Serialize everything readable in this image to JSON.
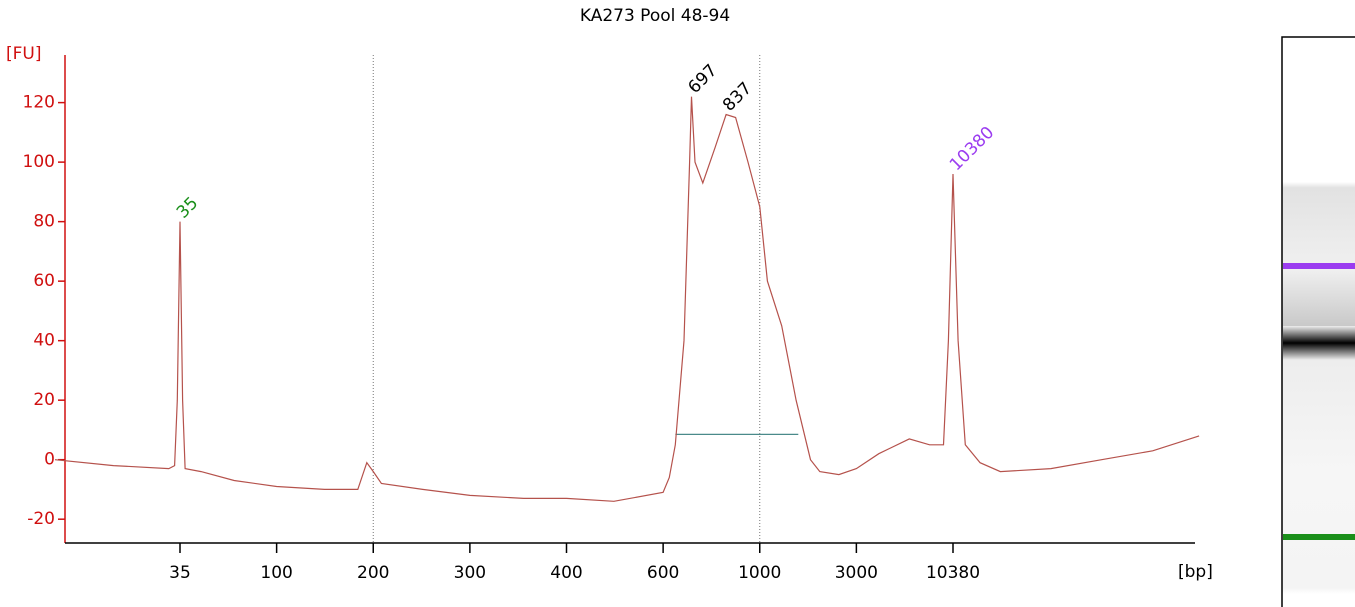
{
  "chart_data": {
    "type": "line",
    "title": "KA273 Pool 48-94",
    "y_label": "[FU]",
    "x_label": "[bp]",
    "ylim": [
      -28,
      136
    ],
    "yticks": [
      -20,
      0,
      20,
      40,
      60,
      80,
      100,
      120
    ],
    "xlim": [
      9,
      245000
    ],
    "xticks": [
      35,
      100,
      200,
      300,
      400,
      600,
      1000,
      3000,
      10380
    ],
    "xscale": "ladder",
    "reference_lines": [
      200,
      1000
    ],
    "region": {
      "x": [
        640,
        1550
      ],
      "y": 8.5,
      "color": "#4a8a8a"
    },
    "series": [
      {
        "name": "KA273 Pool 48-94",
        "color": "#b5524c",
        "x": [
          9,
          17,
          31,
          33,
          34,
          35,
          36,
          37,
          44,
          63,
          100,
          141,
          179,
          191,
          200,
          207,
          246,
          300,
          352,
          400,
          488,
          600,
          620,
          640,
          670,
          690,
          697,
          710,
          740,
          790,
          837,
          880,
          940,
          1000,
          1091,
          1284,
          1512,
          1780,
          1980,
          2460,
          3000,
          4000,
          5920,
          7690,
          9190,
          9780,
          10380,
          11080,
          12150,
          14710,
          19050,
          36500,
          70000,
          135000,
          245000
        ],
        "values": [
          0,
          -2,
          -3,
          -2,
          20,
          80,
          20,
          -3,
          -4,
          -7,
          -9,
          -10,
          -10,
          -1,
          -4,
          -8,
          -10,
          -12,
          -13,
          -13,
          -14,
          -11,
          -6,
          5,
          40,
          100,
          122,
          100,
          93,
          105,
          116,
          115,
          100,
          85,
          60,
          45,
          20,
          0,
          -4,
          -5,
          -3,
          2,
          7,
          5,
          5,
          40,
          96,
          40,
          5,
          -1,
          -4,
          -3,
          0,
          3,
          8
        ]
      }
    ],
    "peaks": [
      {
        "label": "35",
        "x": 35,
        "y": 80,
        "color": "#1a8f1a"
      },
      {
        "label": "697",
        "x": 697,
        "y": 122,
        "color": "#000000"
      },
      {
        "label": "837",
        "x": 837,
        "y": 116,
        "color": "#000000"
      },
      {
        "label": "10380",
        "x": 10380,
        "y": 96,
        "color": "#9b3cf0"
      }
    ]
  }
}
